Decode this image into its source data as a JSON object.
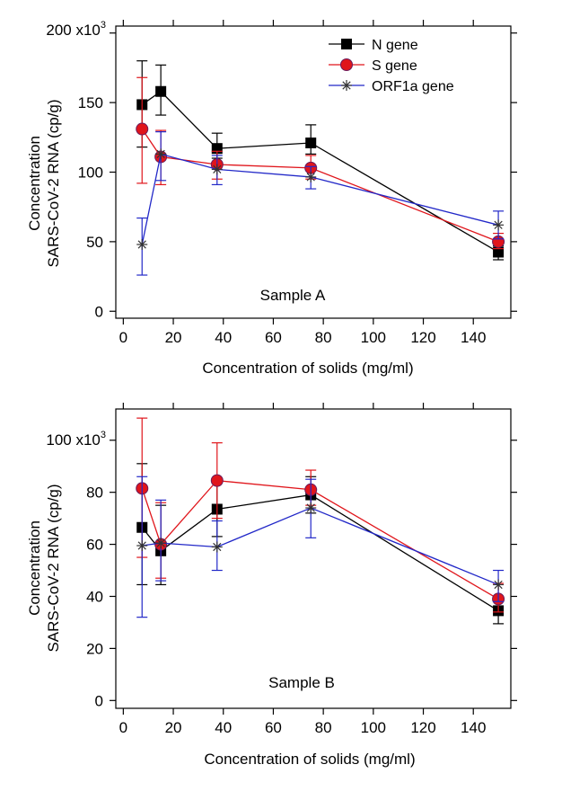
{
  "chart_data": [
    {
      "type": "line",
      "panel_label": "Sample A",
      "xlabel": "Concentration of solids (mg/ml)",
      "ylabel_line1": "Concentration",
      "ylabel_line2": "SARS-CoV-2 RNA (cp/g)",
      "y_top_tick_prefix": "200 x10",
      "y_top_tick_exponent": "3",
      "xlim": [
        -3,
        155
      ],
      "ylim": [
        -5000,
        205000
      ],
      "xticks": [
        0,
        20,
        40,
        60,
        80,
        100,
        120,
        140
      ],
      "yticks": [
        0,
        50000,
        100000,
        150000,
        200000
      ],
      "ytick_labels": [
        "0",
        "50",
        "100",
        "150",
        "200"
      ],
      "x": [
        7.5,
        15,
        37.5,
        75,
        150
      ],
      "legend": true,
      "legend_position": "top-right",
      "grid": false,
      "series": [
        {
          "name": "N gene",
          "color": "#000000",
          "marker": "square",
          "values": [
            148500,
            158000,
            117000,
            121000,
            42500
          ],
          "err_low": [
            118000,
            141000,
            110000,
            113000,
            37000
          ],
          "err_high": [
            180000,
            177000,
            128000,
            134000,
            47000
          ]
        },
        {
          "name": "S gene",
          "color": "#e0151b",
          "marker": "circle",
          "values": [
            131000,
            111000,
            105500,
            103000,
            50000
          ],
          "err_low": [
            92000,
            91000,
            95000,
            95000,
            45000
          ],
          "err_high": [
            168000,
            130000,
            115000,
            112000,
            56000
          ]
        },
        {
          "name": "ORF1a gene",
          "color": "#2228c8",
          "marker": "star",
          "values": [
            48000,
            113000,
            102000,
            96500,
            62000
          ],
          "err_low": [
            26000,
            94000,
            91000,
            88000,
            52000
          ],
          "err_high": [
            67000,
            129000,
            112000,
            104000,
            72000
          ]
        }
      ]
    },
    {
      "type": "line",
      "panel_label": "Sample B",
      "xlabel": "Concentration of solids (mg/ml)",
      "ylabel_line1": "Concentration",
      "ylabel_line2": "SARS-CoV-2 RNA (cp/g)",
      "y_top_tick_prefix": "100 x10",
      "y_top_tick_exponent": "3",
      "xlim": [
        -3,
        155
      ],
      "ylim": [
        -3000,
        112000
      ],
      "xticks": [
        0,
        20,
        40,
        60,
        80,
        100,
        120,
        140
      ],
      "yticks": [
        0,
        20000,
        40000,
        60000,
        80000,
        100000
      ],
      "ytick_labels": [
        "0",
        "20",
        "40",
        "60",
        "80",
        "100"
      ],
      "x": [
        7.5,
        15,
        37.5,
        75,
        150
      ],
      "legend": false,
      "grid": false,
      "series": [
        {
          "name": "N gene",
          "color": "#000000",
          "marker": "square",
          "values": [
            66500,
            57500,
            73500,
            79000,
            34500
          ],
          "err_low": [
            44500,
            44500,
            63000,
            72000,
            29500
          ],
          "err_high": [
            91000,
            75000,
            85000,
            86000,
            39500
          ]
        },
        {
          "name": "S gene",
          "color": "#e0151b",
          "marker": "circle",
          "values": [
            81500,
            60000,
            84500,
            81000,
            39000
          ],
          "err_low": [
            55000,
            47000,
            70000,
            75000,
            34000
          ],
          "err_high": [
            108500,
            76000,
            99000,
            88500,
            45000
          ]
        },
        {
          "name": "ORF1a gene",
          "color": "#2228c8",
          "marker": "star",
          "values": [
            59500,
            60500,
            59000,
            74000,
            44500
          ],
          "err_low": [
            32000,
            46000,
            50000,
            62500,
            38000
          ],
          "err_high": [
            86000,
            77000,
            69000,
            85000,
            50000
          ]
        }
      ]
    }
  ]
}
